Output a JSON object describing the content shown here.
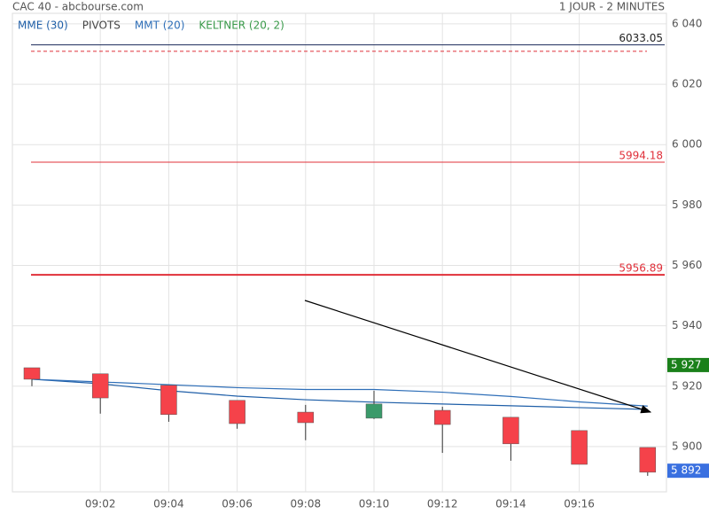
{
  "chart_data": {
    "type": "candlestick",
    "title": "CAC 40 - abcbourse.com",
    "subtitle": "1 JOUR - 2 MINUTES",
    "categories": [
      null,
      "09:02",
      "09:04",
      "09:06",
      "09:08",
      "09:10",
      "09:12",
      "09:14",
      "09:16",
      null
    ],
    "open": [
      5926.1,
      5924.1,
      5920.3,
      5915.3,
      5911.4,
      5909.4,
      5912.0,
      5909.7,
      5905.3,
      5899.7
    ],
    "high": [
      5926.1,
      5924.1,
      5920.3,
      5915.3,
      5913.8,
      5918.5,
      5913.2,
      5909.7,
      5905.3,
      5899.7
    ],
    "low": [
      5920.0,
      5910.9,
      5908.2,
      5905.9,
      5902.1,
      5909.1,
      5897.9,
      5895.3,
      5894.1,
      5890.3
    ],
    "close": [
      5922.3,
      5916.1,
      5910.6,
      5907.6,
      5907.9,
      5914.1,
      5907.3,
      5900.9,
      5894.1,
      5891.5
    ],
    "up_color": "#3a9a6a",
    "down_color": "#f5424a",
    "series": [
      {
        "name": "MME (30)",
        "color": "#1f5fa8",
        "values": [
          5922.3,
          5920.8,
          5918.5,
          5916.7,
          5915.5,
          5914.7,
          5914.1,
          5913.5,
          5912.9,
          5912.3
        ]
      },
      {
        "name": "MMT (20)",
        "color": "#2f6fb8",
        "values": [
          5922.3,
          5921.4,
          5920.5,
          5919.5,
          5918.9,
          5918.9,
          5918.0,
          5916.6,
          5914.8,
          5913.4
        ]
      }
    ],
    "other_legend": [
      {
        "name": "PIVOTS",
        "color": "#444444"
      },
      {
        "name": "KELTNER (20, 2)",
        "color": "#3a9a4a"
      }
    ],
    "levels": [
      {
        "value": 6033.05,
        "color": "#1a2a5a",
        "label_color": "#222222",
        "dashed": false,
        "width": 1
      },
      {
        "value": 6030.9,
        "color": "#e0303a",
        "dashed": true,
        "width": 1
      },
      {
        "value": 5994.18,
        "color": "#e0303a",
        "label_color": "#e0303a",
        "dashed": false,
        "width": 1
      },
      {
        "value": 5956.89,
        "color": "#e0303a",
        "label_color": "#e0303a",
        "dashed": false,
        "width": 2
      }
    ],
    "level_labels": [
      "6033.05",
      null,
      "5994.18",
      "5956.89"
    ],
    "price_tags": [
      {
        "value": 5927,
        "label": "5 927",
        "color": "#1a801a"
      },
      {
        "value": 5892,
        "label": "5 892",
        "color": "#3a70e0"
      }
    ],
    "ylim": [
      5885,
      6043.5
    ],
    "yticks": [
      {
        "value": 5900,
        "label": "5 900"
      },
      {
        "value": 5920,
        "label": "5 920"
      },
      {
        "value": 5940,
        "label": "5 940"
      },
      {
        "value": 5960,
        "label": "5 960"
      },
      {
        "value": 5980,
        "label": "5 980"
      },
      {
        "value": 6000,
        "label": "6 000"
      },
      {
        "value": 6020,
        "label": "6 020"
      },
      {
        "value": 6040,
        "label": "6 040"
      }
    ],
    "grid": true
  }
}
